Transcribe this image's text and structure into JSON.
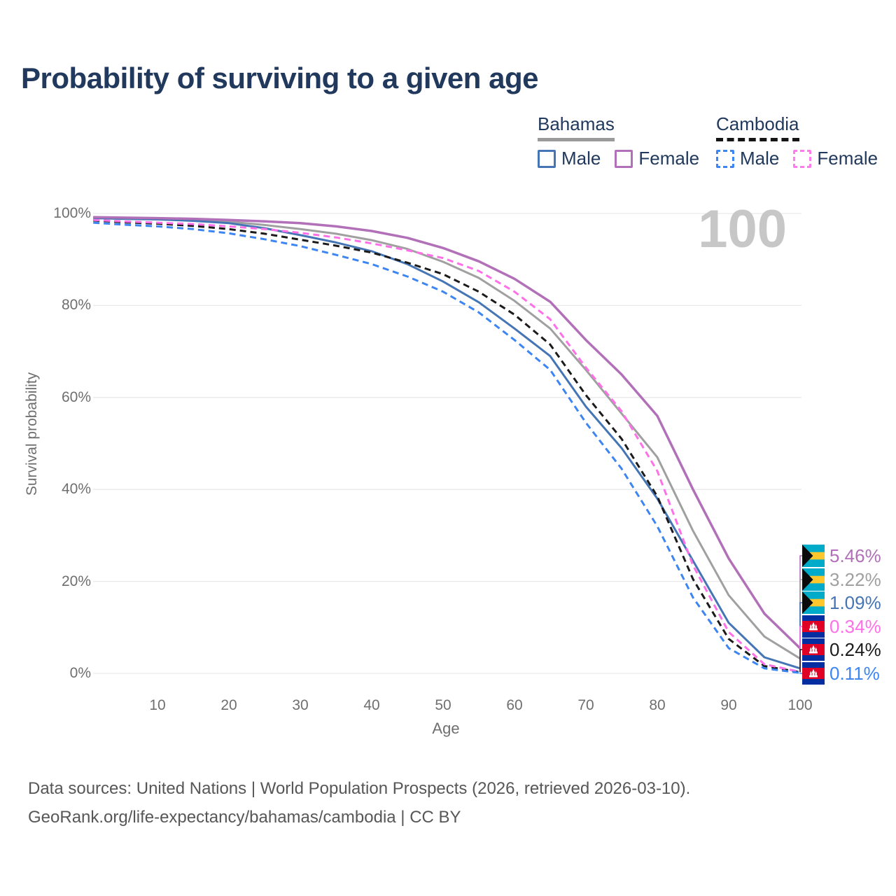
{
  "title": "Probability of surviving to a given age",
  "legend": {
    "groups": [
      {
        "name": "Bahamas",
        "line_style": "solid",
        "line_color": "#9a9a9a",
        "items": [
          {
            "label": "Male",
            "color": "#4575b4",
            "dashed": false
          },
          {
            "label": "Female",
            "color": "#b170b8",
            "dashed": false
          }
        ]
      },
      {
        "name": "Cambodia",
        "line_style": "dashed",
        "line_color": "#141414",
        "items": [
          {
            "label": "Male",
            "color": "#3d85f2",
            "dashed": true
          },
          {
            "label": "Female",
            "color": "#ff7cea",
            "dashed": true
          }
        ]
      }
    ]
  },
  "chart_data": {
    "type": "line",
    "title": "Probability of surviving to a given age",
    "xlabel": "Age",
    "ylabel": "Survival probability",
    "xlim": [
      0,
      100
    ],
    "ylim": [
      0,
      100
    ],
    "grid": true,
    "hover_age_label": "100",
    "x_ticks": [
      10,
      20,
      30,
      40,
      50,
      60,
      70,
      80,
      90,
      100
    ],
    "y_ticks": [
      {
        "value": 100,
        "label": "100%"
      },
      {
        "value": 80,
        "label": "80%"
      },
      {
        "value": 60,
        "label": "60%"
      },
      {
        "value": 40,
        "label": "40%"
      },
      {
        "value": 20,
        "label": "20%"
      },
      {
        "value": 0,
        "label": "0%"
      }
    ],
    "series": [
      {
        "name": "Bahamas Female",
        "flag": "bahamas",
        "color": "#b170b8",
        "dashed": false,
        "width": 3.5,
        "end_label": "5.46%",
        "points": [
          [
            1,
            99.2
          ],
          [
            5,
            99.1
          ],
          [
            10,
            99.0
          ],
          [
            15,
            98.85
          ],
          [
            20,
            98.6
          ],
          [
            25,
            98.3
          ],
          [
            30,
            97.9
          ],
          [
            35,
            97.2
          ],
          [
            40,
            96.2
          ],
          [
            45,
            94.7
          ],
          [
            50,
            92.5
          ],
          [
            55,
            89.6
          ],
          [
            60,
            85.8
          ],
          [
            65,
            80.8
          ],
          [
            70,
            72.5
          ],
          [
            75,
            65.0
          ],
          [
            80,
            56.0
          ],
          [
            85,
            40.0
          ],
          [
            90,
            25.0
          ],
          [
            95,
            13.0
          ],
          [
            100,
            5.46
          ]
        ]
      },
      {
        "name": "Bahamas",
        "flag": "bahamas",
        "color": "#a0a0a0",
        "dashed": false,
        "width": 3,
        "end_label": "3.22%",
        "points": [
          [
            1,
            99.1
          ],
          [
            5,
            99.0
          ],
          [
            10,
            98.85
          ],
          [
            15,
            98.6
          ],
          [
            20,
            98.2
          ],
          [
            25,
            97.5
          ],
          [
            30,
            96.6
          ],
          [
            35,
            95.6
          ],
          [
            40,
            94.2
          ],
          [
            45,
            92.3
          ],
          [
            50,
            89.5
          ],
          [
            55,
            86.0
          ],
          [
            60,
            81.0
          ],
          [
            65,
            75.0
          ],
          [
            70,
            66.0
          ],
          [
            75,
            56.5
          ],
          [
            80,
            47.0
          ],
          [
            85,
            31.0
          ],
          [
            90,
            17.0
          ],
          [
            95,
            8.0
          ],
          [
            100,
            3.22
          ]
        ]
      },
      {
        "name": "Bahamas Male",
        "flag": "bahamas",
        "color": "#4575b4",
        "dashed": false,
        "width": 3,
        "end_label": "1.09%",
        "points": [
          [
            1,
            99.0
          ],
          [
            5,
            98.85
          ],
          [
            10,
            98.7
          ],
          [
            15,
            98.4
          ],
          [
            20,
            97.9
          ],
          [
            25,
            96.8
          ],
          [
            30,
            95.3
          ],
          [
            35,
            93.7
          ],
          [
            40,
            91.8
          ],
          [
            45,
            89.0
          ],
          [
            50,
            85.2
          ],
          [
            55,
            80.7
          ],
          [
            60,
            75.0
          ],
          [
            65,
            69.0
          ],
          [
            70,
            58.0
          ],
          [
            75,
            49.0
          ],
          [
            80,
            38.0
          ],
          [
            85,
            24.5
          ],
          [
            90,
            11.0
          ],
          [
            95,
            3.5
          ],
          [
            100,
            1.09
          ]
        ]
      },
      {
        "name": "Cambodia Female",
        "flag": "cambodia",
        "color": "#ff70e8",
        "dashed": true,
        "width": 3,
        "end_label": "0.34%",
        "points": [
          [
            1,
            98.6
          ],
          [
            5,
            98.3
          ],
          [
            10,
            98.0
          ],
          [
            15,
            97.7
          ],
          [
            20,
            97.2
          ],
          [
            25,
            96.6
          ],
          [
            30,
            95.8
          ],
          [
            35,
            94.8
          ],
          [
            40,
            93.5
          ],
          [
            45,
            92.0
          ],
          [
            50,
            90.3
          ],
          [
            55,
            87.5
          ],
          [
            60,
            83.0
          ],
          [
            65,
            77.0
          ],
          [
            70,
            66.5
          ],
          [
            75,
            57.0
          ],
          [
            80,
            44.0
          ],
          [
            85,
            23.5
          ],
          [
            90,
            9.0
          ],
          [
            95,
            2.0
          ],
          [
            100,
            0.34
          ]
        ]
      },
      {
        "name": "Cambodia",
        "flag": "cambodia",
        "color": "#1b1b1b",
        "dashed": true,
        "width": 3,
        "end_label": "0.24%",
        "points": [
          [
            1,
            98.5
          ],
          [
            5,
            98.1
          ],
          [
            10,
            97.8
          ],
          [
            15,
            97.3
          ],
          [
            20,
            96.6
          ],
          [
            25,
            95.6
          ],
          [
            30,
            94.3
          ],
          [
            35,
            93.0
          ],
          [
            40,
            91.5
          ],
          [
            45,
            89.3
          ],
          [
            50,
            86.8
          ],
          [
            55,
            83.0
          ],
          [
            60,
            78.0
          ],
          [
            65,
            71.5
          ],
          [
            70,
            60.5
          ],
          [
            75,
            51.0
          ],
          [
            80,
            38.5
          ],
          [
            85,
            20.5
          ],
          [
            90,
            7.5
          ],
          [
            95,
            1.6
          ],
          [
            100,
            0.24
          ]
        ]
      },
      {
        "name": "Cambodia Male",
        "flag": "cambodia",
        "color": "#3d85f2",
        "dashed": true,
        "width": 3,
        "end_label": "0.11%",
        "points": [
          [
            1,
            98.0
          ],
          [
            5,
            97.6
          ],
          [
            10,
            97.2
          ],
          [
            15,
            96.6
          ],
          [
            20,
            95.7
          ],
          [
            25,
            94.4
          ],
          [
            30,
            92.9
          ],
          [
            35,
            91.0
          ],
          [
            40,
            89.0
          ],
          [
            45,
            86.3
          ],
          [
            50,
            83.0
          ],
          [
            55,
            78.5
          ],
          [
            60,
            72.5
          ],
          [
            65,
            66.0
          ],
          [
            70,
            54.5
          ],
          [
            75,
            44.5
          ],
          [
            80,
            32.0
          ],
          [
            85,
            16.5
          ],
          [
            90,
            5.5
          ],
          [
            95,
            1.1
          ],
          [
            100,
            0.11
          ]
        ]
      }
    ]
  },
  "footer": {
    "line1": "Data sources: United Nations | World Population Prospects (2026, retrieved 2026-03-10).",
    "line2": "GeoRank.org/life-expectancy/bahamas/cambodia | CC BY"
  }
}
